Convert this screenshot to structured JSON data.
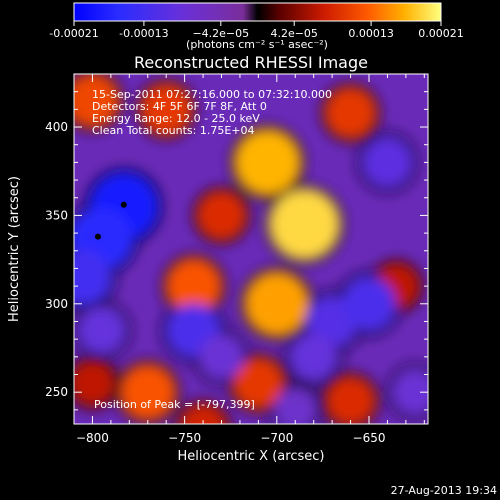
{
  "chart_data": {
    "type": "heatmap",
    "title": "Reconstructed RHESSI Image",
    "xlabel": "Heliocentric X (arcsec)",
    "ylabel": "Heliocentric Y (arcsec)",
    "xlim": [
      -810,
      -618
    ],
    "ylim": [
      232,
      430
    ],
    "xticks": [
      -800,
      -750,
      -700,
      -650
    ],
    "yticks": [
      250,
      300,
      350,
      400
    ],
    "colorbar": {
      "ticks": [
        -0.00021,
        -0.00013,
        -4.2e-05,
        4.2e-05,
        0.00013,
        0.00021
      ],
      "tick_labels": [
        "-0.00021",
        "-0.00013",
        "−4.2e−05",
        "4.2e−05",
        "0.00013",
        "0.00021"
      ],
      "unit_label": "(photons cm⁻² s⁻¹ asec⁻²)",
      "range": [
        -0.00021,
        0.00021
      ]
    },
    "annotations": [
      "15-Sep-2011 07:27:16.000 to 07:32:10.000",
      "Detectors: 4F 5F 6F 7F 8F, Att 0",
      "Energy Range: 12.0 - 25.0 keV",
      "Clean    Total counts: 1.75E+04",
      "Position of Peak = [-797,399]"
    ],
    "peak": [
      -797,
      399
    ],
    "blobs": [
      {
        "x": -705,
        "y": 380,
        "v": 0.00017
      },
      {
        "x": -685,
        "y": 345,
        "v": 0.00019
      },
      {
        "x": -700,
        "y": 300,
        "v": 0.00016
      },
      {
        "x": -745,
        "y": 310,
        "v": 0.00012
      },
      {
        "x": -760,
        "y": 410,
        "v": 0.0001
      },
      {
        "x": -800,
        "y": 415,
        "v": 0.00011
      },
      {
        "x": -660,
        "y": 408,
        "v": 0.0001
      },
      {
        "x": -770,
        "y": 250,
        "v": 0.00012
      },
      {
        "x": -800,
        "y": 255,
        "v": 7e-05
      },
      {
        "x": -660,
        "y": 245,
        "v": 9e-05
      },
      {
        "x": -710,
        "y": 255,
        "v": 0.0001
      },
      {
        "x": -730,
        "y": 350,
        "v": 9e-05
      },
      {
        "x": -635,
        "y": 310,
        "v": 7e-05
      },
      {
        "x": -740,
        "y": 230,
        "v": 8e-05
      },
      {
        "x": -783,
        "y": 355,
        "v": -0.00018
      },
      {
        "x": -795,
        "y": 337,
        "v": -0.00016
      },
      {
        "x": -805,
        "y": 315,
        "v": -0.00013
      },
      {
        "x": -745,
        "y": 285,
        "v": -0.00012
      },
      {
        "x": -670,
        "y": 290,
        "v": -0.00011
      },
      {
        "x": -650,
        "y": 300,
        "v": -0.00012
      },
      {
        "x": -640,
        "y": 380,
        "v": -0.0001
      },
      {
        "x": -795,
        "y": 285,
        "v": -9e-05
      },
      {
        "x": -680,
        "y": 270,
        "v": -9e-05
      },
      {
        "x": -730,
        "y": 270,
        "v": -8e-05
      },
      {
        "x": -625,
        "y": 250,
        "v": -8e-05
      },
      {
        "x": -690,
        "y": 240,
        "v": -7e-05
      }
    ]
  },
  "footer": {
    "timestamp": "27-Aug-2013 19:34"
  }
}
